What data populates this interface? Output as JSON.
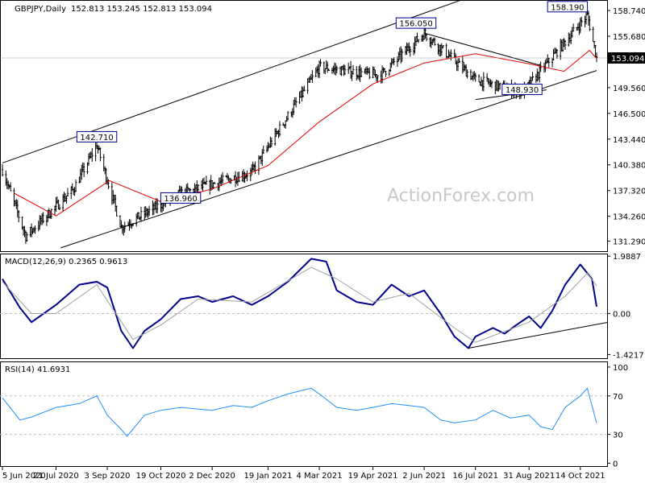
{
  "chart_data": [
    {
      "type": "candlestick",
      "panel": "price",
      "title": "GBPJPY,Daily",
      "ohlc_header": "152.813 153.245 152.813 153.094",
      "ylim": [
        130.2,
        159.8
      ],
      "yticks": [
        "158.740",
        "155.680",
        "153.094",
        "149.560",
        "146.500",
        "143.440",
        "140.380",
        "137.320",
        "134.260",
        "131.290"
      ],
      "last_price": "153.094",
      "watermark": "ActionForex.com",
      "annotations": [
        "142.710",
        "136.960",
        "156.050",
        "148.930",
        "158.190"
      ],
      "key_points": [
        {
          "date": "5 Jun 2020",
          "value": 139.8
        },
        {
          "date": "late Jun 2020",
          "value": 131.9
        },
        {
          "date": "early Aug 2020",
          "value": 137.5
        },
        {
          "date": "late Aug 2020",
          "value": 142.71
        },
        {
          "date": "mid Sep 2020",
          "value": 133.0
        },
        {
          "date": "early Nov 2020",
          "value": 136.96
        },
        {
          "date": "5 Jan 2021",
          "value": 139.5
        },
        {
          "date": "4 Mar 2021",
          "value": 152.0
        },
        {
          "date": "late Apr 2021",
          "value": 151.0
        },
        {
          "date": "2 Jun 2021",
          "value": 156.05
        },
        {
          "date": "16 Jul 2021",
          "value": 150.5
        },
        {
          "date": "late Aug 2021",
          "value": 148.93
        },
        {
          "date": "20 Oct 2021",
          "value": 158.19
        },
        {
          "date": "28 Oct 2021",
          "value": 153.094
        }
      ],
      "series": [
        {
          "name": "",
          "kind": "moving-average",
          "color": "#e00000",
          "points": [
            {
              "date": "15 Jun 2020",
              "value": 137.0
            },
            {
              "date": "21 Jul 2020",
              "value": 134.3
            },
            {
              "date": "early Sep 2020",
              "value": 138.5
            },
            {
              "date": "19 Oct 2020",
              "value": 136.0
            },
            {
              "date": "2 Dec 2020",
              "value": 137.5
            },
            {
              "date": "19 Jan 2021",
              "value": 140.3
            },
            {
              "date": "4 Mar 2021",
              "value": 145.5
            },
            {
              "date": "19 Apr 2021",
              "value": 150.0
            },
            {
              "date": "2 Jun 2021",
              "value": 152.5
            },
            {
              "date": "16 Jul 2021",
              "value": 153.6
            },
            {
              "date": "31 Aug 2021",
              "value": 152.4
            },
            {
              "date": "30 Sep 2021",
              "value": 151.5
            },
            {
              "date": "22 Oct 2021",
              "value": 154.0
            },
            {
              "date": "28 Oct 2021",
              "value": 153.0
            }
          ]
        }
      ],
      "trendlines": [
        {
          "name": "channel-upper",
          "from": {
            "date": "5 Jun 2020",
            "value": 140.6
          },
          "to": {
            "date": "4 Jul 2021",
            "value": 160.0
          }
        },
        {
          "name": "channel-lower",
          "from": {
            "date": "25 Jul 2020",
            "value": 130.5
          },
          "to": {
            "date": "28 Oct 2021",
            "value": 151.6
          }
        },
        {
          "name": "triangle-upper",
          "from": {
            "date": "2 Jun 2021",
            "value": 156.05
          },
          "to": {
            "date": "10 Sep 2021",
            "value": 152.2
          }
        },
        {
          "name": "triangle-lower",
          "from": {
            "date": "16 Jul 2021",
            "value": 148.15
          },
          "to": {
            "date": "15 Sep 2021",
            "value": 149.3
          }
        }
      ]
    },
    {
      "type": "line",
      "panel": "macd",
      "title": "MACD(12,26,9) 0.2365 0.9613",
      "ylim": [
        -1.55,
        2.05
      ],
      "yticks": [
        "1.9887",
        "0.00",
        "-1.4217"
      ],
      "series": [
        {
          "name": "",
          "kind": "macd",
          "color": "#00008b",
          "points": [
            [
              "5 Jun 2020",
              1.2
            ],
            [
              "20 Jun 2020",
              0.2
            ],
            [
              "30 Jun 2020",
              -0.3
            ],
            [
              "21 Jul 2020",
              0.3
            ],
            [
              "10 Aug 2020",
              1.0
            ],
            [
              "25 Aug 2020",
              1.1
            ],
            [
              "3 Sep 2020",
              0.9
            ],
            [
              "15 Sep 2020",
              -0.6
            ],
            [
              "25 Sep 2020",
              -1.2
            ],
            [
              "5 Oct 2020",
              -0.6
            ],
            [
              "19 Oct 2020",
              -0.2
            ],
            [
              "5 Nov 2020",
              0.5
            ],
            [
              "20 Nov 2020",
              0.6
            ],
            [
              "2 Dec 2020",
              0.4
            ],
            [
              "20 Dec 2020",
              0.6
            ],
            [
              "5 Jan 2021",
              0.3
            ],
            [
              "19 Jan 2021",
              0.6
            ],
            [
              "5 Feb 2021",
              1.1
            ],
            [
              "25 Feb 2021",
              1.9
            ],
            [
              "10 Mar 2021",
              1.8
            ],
            [
              "19 Mar 2021",
              0.8
            ],
            [
              "5 Apr 2021",
              0.4
            ],
            [
              "19 Apr 2021",
              0.3
            ],
            [
              "5 May 2021",
              1.0
            ],
            [
              "20 May 2021",
              0.6
            ],
            [
              "2 Jun 2021",
              0.8
            ],
            [
              "16 Jun 2021",
              0.0
            ],
            [
              "28 Jun 2021",
              -0.8
            ],
            [
              "10 Jul 2021",
              -1.2
            ],
            [
              "16 Jul 2021",
              -0.8
            ],
            [
              "31 Jul 2021",
              -0.5
            ],
            [
              "10 Aug 2021",
              -0.7
            ],
            [
              "20 Aug 2021",
              -0.4
            ],
            [
              "31 Aug 2021",
              -0.1
            ],
            [
              "10 Sep 2021",
              -0.5
            ],
            [
              "20 Sep 2021",
              0.1
            ],
            [
              "1 Oct 2021",
              1.0
            ],
            [
              "14 Oct 2021",
              1.7
            ],
            [
              "24 Oct 2021",
              1.2
            ],
            [
              "28 Oct 2021",
              0.2365
            ]
          ]
        },
        {
          "name": "",
          "kind": "signal",
          "color": "#a0a0a0",
          "points": [
            [
              "5 Jun 2020",
              1.1
            ],
            [
              "30 Jun 2020",
              0.0
            ],
            [
              "21 Jul 2020",
              0.0
            ],
            [
              "25 Aug 2020",
              1.0
            ],
            [
              "25 Sep 2020",
              -0.9
            ],
            [
              "19 Oct 2020",
              -0.4
            ],
            [
              "20 Nov 2020",
              0.5
            ],
            [
              "5 Jan 2021",
              0.4
            ],
            [
              "25 Feb 2021",
              1.6
            ],
            [
              "19 Mar 2021",
              1.2
            ],
            [
              "19 Apr 2021",
              0.4
            ],
            [
              "20 May 2021",
              0.7
            ],
            [
              "28 Jun 2021",
              -0.5
            ],
            [
              "16 Jul 2021",
              -1.0
            ],
            [
              "31 Aug 2021",
              -0.3
            ],
            [
              "1 Oct 2021",
              0.6
            ],
            [
              "20 Oct 2021",
              1.4
            ],
            [
              "28 Oct 2021",
              0.9613
            ]
          ]
        }
      ],
      "trendlines": [
        {
          "name": "macd-support",
          "from": {
            "date": "10 Jul 2021",
            "value": -1.2
          },
          "to": {
            "date": "28 Oct 2021",
            "value": -0.25
          }
        }
      ]
    },
    {
      "type": "line",
      "panel": "rsi",
      "title": "RSI(14) 41.6931",
      "ylim": [
        0,
        100
      ],
      "yticks": [
        "100",
        "70",
        "30",
        "0"
      ],
      "levels": [
        70,
        30
      ],
      "series": [
        {
          "name": "",
          "kind": "rsi",
          "color": "#1e90ff",
          "points": [
            [
              "5 Jun 2020",
              68
            ],
            [
              "20 Jun 2020",
              45
            ],
            [
              "30 Jun 2020",
              48
            ],
            [
              "21 Jul 2020",
              58
            ],
            [
              "10 Aug 2020",
              62
            ],
            [
              "25 Aug 2020",
              70
            ],
            [
              "3 Sep 2020",
              50
            ],
            [
              "15 Sep 2020",
              35
            ],
            [
              "20 Sep 2020",
              28
            ],
            [
              "5 Oct 2020",
              50
            ],
            [
              "19 Oct 2020",
              55
            ],
            [
              "5 Nov 2020",
              58
            ],
            [
              "2 Dec 2020",
              55
            ],
            [
              "20 Dec 2020",
              60
            ],
            [
              "5 Jan 2021",
              58
            ],
            [
              "19 Jan 2021",
              65
            ],
            [
              "5 Feb 2021",
              72
            ],
            [
              "25 Feb 2021",
              78
            ],
            [
              "4 Mar 2021",
              72
            ],
            [
              "19 Mar 2021",
              58
            ],
            [
              "5 Apr 2021",
              55
            ],
            [
              "19 Apr 2021",
              58
            ],
            [
              "5 May 2021",
              62
            ],
            [
              "20 May 2021",
              60
            ],
            [
              "2 Jun 2021",
              58
            ],
            [
              "16 Jun 2021",
              45
            ],
            [
              "28 Jun 2021",
              42
            ],
            [
              "16 Jul 2021",
              45
            ],
            [
              "31 Jul 2021",
              55
            ],
            [
              "15 Aug 2021",
              47
            ],
            [
              "31 Aug 2021",
              50
            ],
            [
              "10 Sep 2021",
              38
            ],
            [
              "20 Sep 2021",
              35
            ],
            [
              "1 Oct 2021",
              58
            ],
            [
              "14 Oct 2021",
              70
            ],
            [
              "20 Oct 2021",
              78
            ],
            [
              "24 Oct 2021",
              60
            ],
            [
              "28 Oct 2021",
              41.6931
            ]
          ]
        }
      ]
    }
  ],
  "x_axis_labels": [
    "5 Jun 2020",
    "21 Jul 2020",
    "3 Sep 2020",
    "19 Oct 2020",
    "2 Dec 2020",
    "19 Jan 2021",
    "4 Mar 2021",
    "19 Apr 2021",
    "2 Jun 2021",
    "16 Jul 2021",
    "31 Aug 2021",
    "14 Oct 2021"
  ],
  "colors": {
    "candle": "#000000",
    "ma": "#e00000",
    "macd": "#00008b",
    "signal": "#a0a0a0",
    "rsi": "#1e90ff",
    "trendline": "#000000",
    "grid": "#c0c0c0"
  }
}
